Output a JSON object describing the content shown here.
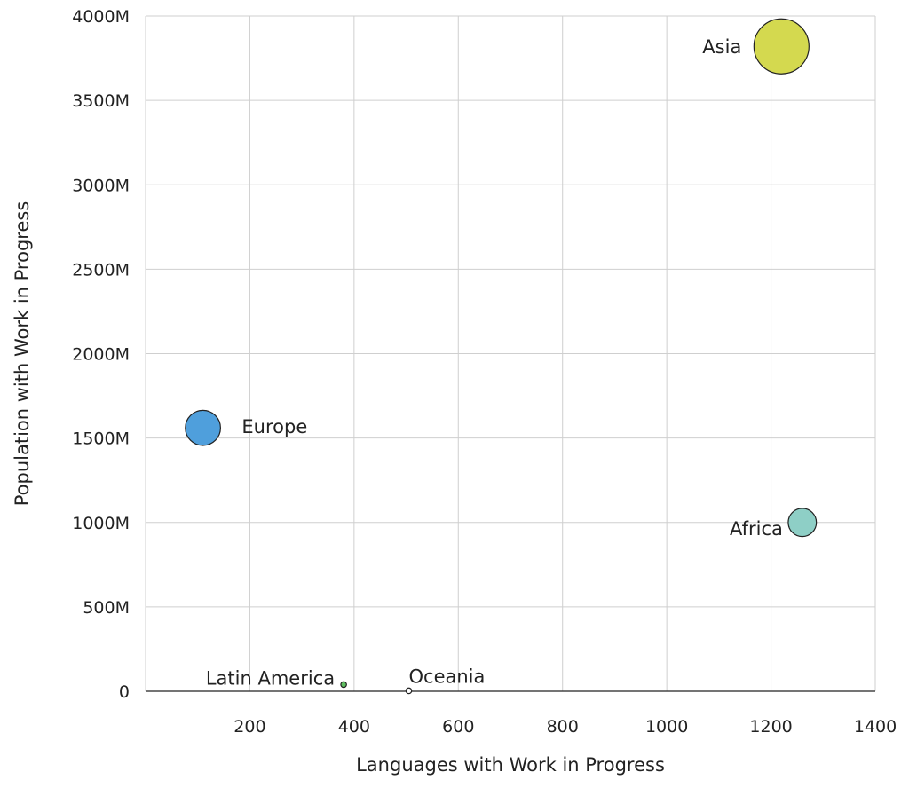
{
  "chart_data": {
    "type": "scatter",
    "xlabel": "Languages with Work in Progress",
    "ylabel": "Population with Work in Progress",
    "xlim": [
      0,
      1400
    ],
    "ylim": [
      0,
      4000
    ],
    "x_ticks": [
      200,
      400,
      600,
      800,
      1000,
      1200,
      1400
    ],
    "y_ticks": [
      0,
      500,
      1000,
      1500,
      2000,
      2500,
      3000,
      3500,
      4000
    ],
    "x_tick_labels": [
      "200",
      "400",
      "600",
      "800",
      "1000",
      "1200",
      "1400"
    ],
    "y_tick_labels": [
      "0",
      "500M",
      "1000M",
      "1500M",
      "2000M",
      "2500M",
      "3000M",
      "3500M",
      "4000M"
    ],
    "grid": true,
    "bubble_size_encodes": "population",
    "points": [
      {
        "name": "Asia",
        "x": 1220,
        "y": 3820,
        "color": "#d4d94f",
        "label_side": "left"
      },
      {
        "name": "Europe",
        "x": 110,
        "y": 1560,
        "color": "#4f9fdc",
        "label_side": "right"
      },
      {
        "name": "Africa",
        "x": 1260,
        "y": 1000,
        "color": "#8ecfc6",
        "label_side": "left-below"
      },
      {
        "name": "Latin America",
        "x": 380,
        "y": 40,
        "color": "#5fbf60",
        "label_side": "left-above"
      },
      {
        "name": "Oceania",
        "x": 505,
        "y": 3,
        "color": "#ffffff",
        "label_side": "right-above"
      }
    ]
  }
}
